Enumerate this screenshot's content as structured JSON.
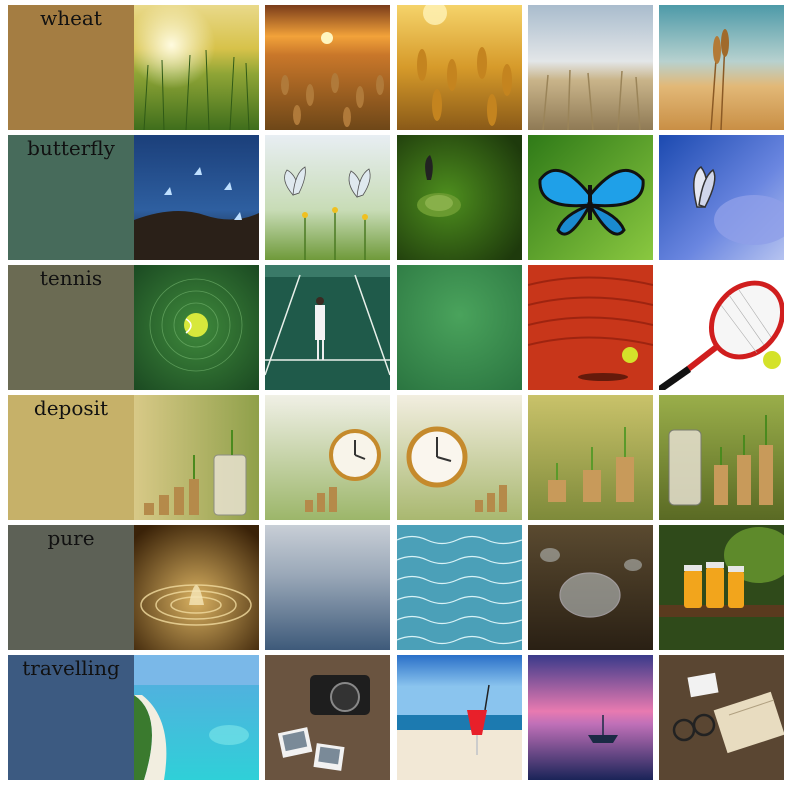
{
  "rows": [
    {
      "word": "wheat",
      "swatch": "#a47d42"
    },
    {
      "word": "butterfly",
      "swatch": "#476b5b"
    },
    {
      "word": "tennis",
      "swatch": "#6b6b53"
    },
    {
      "word": "deposit",
      "swatch": "#c6b169"
    },
    {
      "word": "pure",
      "swatch": "#5d6156"
    },
    {
      "word": "travelling",
      "swatch": "#3c5a81"
    }
  ]
}
